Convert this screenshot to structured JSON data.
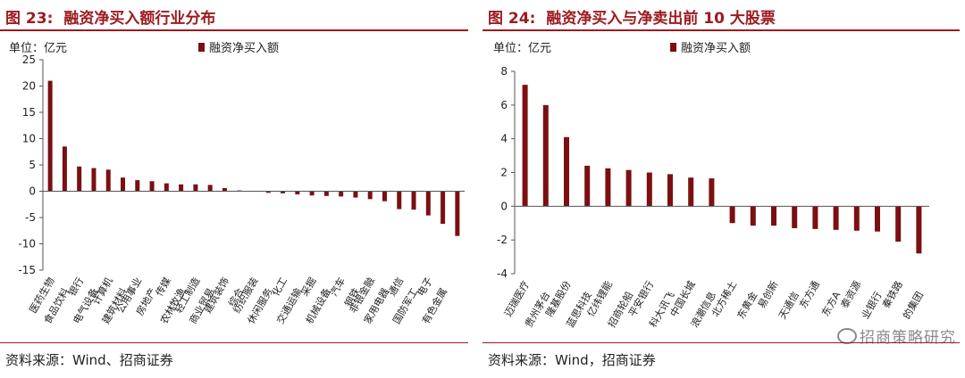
{
  "left": {
    "fig_num": "图 23:",
    "title": "融资净买入额行业分布",
    "unit": "单位：亿元",
    "source": "资料来源：Wind、招商证券",
    "chart_data": {
      "type": "bar",
      "title": "融资净买入额行业分布",
      "ylabel": "单位：亿元",
      "ylim": [
        -15,
        25
      ],
      "yticks": [
        25,
        20,
        15,
        10,
        5,
        0,
        -5,
        -10,
        -15
      ],
      "color": "#7b0f12",
      "series": [
        {
          "name": "融资净买入额",
          "values": [
            21.0,
            8.5,
            4.7,
            4.4,
            4.1,
            2.6,
            2.1,
            1.9,
            1.5,
            1.3,
            1.3,
            1.2,
            0.6,
            0.15,
            0.05,
            -0.3,
            -0.4,
            -0.6,
            -0.8,
            -0.9,
            -1.0,
            -1.2,
            -1.5,
            -1.9,
            -3.4,
            -3.5,
            -4.6,
            -6.2,
            -8.5
          ]
        }
      ],
      "categories": [
        "医药生物",
        "食品饮料",
        "银行",
        "电气设备",
        "计算机",
        "建筑材料",
        "公用事业",
        "房地产",
        "传媒",
        "农林牧渔",
        "轻工制造",
        "商业贸易",
        "建筑装饰",
        "综合",
        "纺织服装",
        "休闲服务",
        "化工",
        "交通运输",
        "采掘",
        "机械设备",
        "汽车",
        "钢铁",
        "非银金融",
        "家用电器",
        "通信",
        "国防军工",
        "电子",
        "有色金属",
        ""
      ]
    }
  },
  "right": {
    "fig_num": "图 24:",
    "title": "融资净买入与净卖出前 10 大股票",
    "unit": "单位：亿元",
    "source": "资料来源：Wind，招商证券",
    "watermark": "招商策略研究",
    "chart_data": {
      "type": "bar",
      "title": "融资净买入与净卖出前 10 大股票",
      "ylabel": "单位：亿元",
      "ylim": [
        -4,
        8
      ],
      "yticks": [
        8,
        6,
        4,
        2,
        0,
        -2,
        -4
      ],
      "color": "#7b0f12",
      "series": [
        {
          "name": "融资净买入额",
          "values": [
            7.2,
            6.0,
            4.1,
            2.4,
            2.25,
            2.15,
            2.0,
            1.9,
            1.7,
            1.65,
            -1.0,
            -1.15,
            -1.15,
            -1.3,
            -1.35,
            -1.4,
            -1.45,
            -1.5,
            -2.1,
            -2.8
          ]
        }
      ],
      "categories": [
        "迈瑞医疗",
        "贵州茅台",
        "隆基股份",
        "蓝思科技",
        "亿纬锂能",
        "招商轮船",
        "平安银行",
        "科大讯飞",
        "中国长城",
        "浪潮信息",
        "北方稀土",
        "东黄金",
        "易创新",
        "天通信",
        "东方通",
        "东方A",
        "泰资源",
        "业银行",
        "秦铁路",
        "的集团"
      ]
    }
  }
}
